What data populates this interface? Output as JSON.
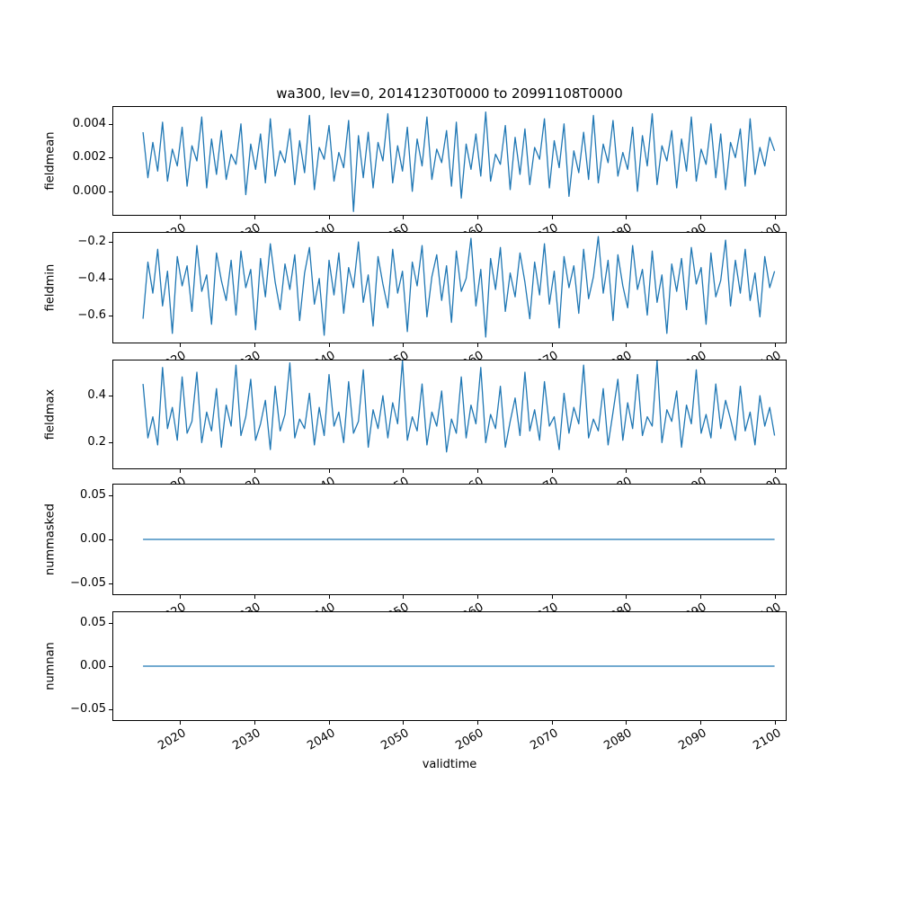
{
  "figure": {
    "title": "wa300, lev=0, 20141230T0000 to 20991108T0000",
    "xlabel": "validtime",
    "line_color": "#1f77b4",
    "background": "#ffffff",
    "xlim": [
      2011.0,
      2101.5
    ],
    "xticks": [
      2020,
      2030,
      2040,
      2050,
      2060,
      2070,
      2080,
      2090,
      2100
    ],
    "xtick_labels": [
      "2020",
      "2030",
      "2040",
      "2050",
      "2060",
      "2070",
      "2080",
      "2090",
      "2100"
    ]
  },
  "chart_data": [
    {
      "type": "line",
      "ylabel": "fieldmean",
      "ylim": [
        -0.0014,
        0.005
      ],
      "yticks": [
        {
          "v": 0.004,
          "label": "0.004"
        },
        {
          "v": 0.002,
          "label": "0.002"
        },
        {
          "v": 0.0,
          "label": "0.000"
        }
      ],
      "x_start": 2015,
      "x_end": 2100,
      "values": [
        0.0035,
        0.0008,
        0.0029,
        0.0012,
        0.0041,
        0.0006,
        0.0025,
        0.0015,
        0.0038,
        0.0003,
        0.0027,
        0.0018,
        0.0044,
        0.0002,
        0.0031,
        0.001,
        0.0036,
        0.0007,
        0.0022,
        0.0016,
        0.004,
        -0.0002,
        0.0028,
        0.0013,
        0.0034,
        0.0005,
        0.0043,
        0.0009,
        0.0024,
        0.0017,
        0.0037,
        0.0004,
        0.003,
        0.0011,
        0.0045,
        0.0001,
        0.0026,
        0.0019,
        0.0039,
        0.0006,
        0.0023,
        0.0014,
        0.0042,
        -0.0012,
        0.0033,
        0.0008,
        0.0035,
        0.0002,
        0.0029,
        0.0018,
        0.0046,
        0.0005,
        0.0027,
        0.0012,
        0.0038,
        0.0,
        0.0031,
        0.0015,
        0.0044,
        0.0007,
        0.0025,
        0.0017,
        0.0036,
        0.0003,
        0.0041,
        -0.0004,
        0.0028,
        0.0013,
        0.0034,
        0.0009,
        0.0047,
        0.0006,
        0.0022,
        0.0016,
        0.0039,
        0.0001,
        0.0032,
        0.001,
        0.0037,
        0.0004,
        0.0026,
        0.0019,
        0.0043,
        0.0002,
        0.003,
        0.0014,
        0.004,
        -0.0003,
        0.0024,
        0.0011,
        0.0035,
        0.0007,
        0.0045,
        0.0005,
        0.0028,
        0.0017,
        0.0042,
        0.0009,
        0.0023,
        0.0013,
        0.0038,
        0.0,
        0.0033,
        0.0015,
        0.0046,
        0.0004,
        0.0027,
        0.0018,
        0.0036,
        0.0002,
        0.0031,
        0.0012,
        0.0044,
        0.0006,
        0.0025,
        0.0016,
        0.004,
        0.0008,
        0.0034,
        0.0001,
        0.0029,
        0.002,
        0.0037,
        0.0003,
        0.0043,
        0.001,
        0.0026,
        0.0015,
        0.0032,
        0.0024
      ]
    },
    {
      "type": "line",
      "ylabel": "fieldmin",
      "ylim": [
        -0.75,
        -0.15
      ],
      "yticks": [
        {
          "v": -0.2,
          "label": "−0.2"
        },
        {
          "v": -0.4,
          "label": "−0.4"
        },
        {
          "v": -0.6,
          "label": "−0.6"
        }
      ],
      "x_start": 2015,
      "x_end": 2100,
      "values": [
        -0.62,
        -0.31,
        -0.48,
        -0.24,
        -0.55,
        -0.36,
        -0.7,
        -0.28,
        -0.44,
        -0.33,
        -0.58,
        -0.22,
        -0.47,
        -0.38,
        -0.65,
        -0.26,
        -0.41,
        -0.52,
        -0.3,
        -0.6,
        -0.25,
        -0.45,
        -0.35,
        -0.68,
        -0.29,
        -0.5,
        -0.21,
        -0.42,
        -0.57,
        -0.32,
        -0.46,
        -0.27,
        -0.63,
        -0.37,
        -0.23,
        -0.54,
        -0.4,
        -0.71,
        -0.3,
        -0.49,
        -0.26,
        -0.59,
        -0.34,
        -0.45,
        -0.2,
        -0.53,
        -0.38,
        -0.66,
        -0.28,
        -0.43,
        -0.56,
        -0.24,
        -0.48,
        -0.36,
        -0.69,
        -0.31,
        -0.44,
        -0.22,
        -0.61,
        -0.39,
        -0.27,
        -0.52,
        -0.33,
        -0.64,
        -0.25,
        -0.47,
        -0.4,
        -0.18,
        -0.55,
        -0.35,
        -0.72,
        -0.29,
        -0.46,
        -0.23,
        -0.58,
        -0.37,
        -0.5,
        -0.26,
        -0.42,
        -0.62,
        -0.31,
        -0.49,
        -0.21,
        -0.54,
        -0.36,
        -0.67,
        -0.28,
        -0.45,
        -0.33,
        -0.59,
        -0.24,
        -0.51,
        -0.39,
        -0.17,
        -0.48,
        -0.3,
        -0.63,
        -0.27,
        -0.44,
        -0.56,
        -0.22,
        -0.46,
        -0.35,
        -0.6,
        -0.25,
        -0.53,
        -0.38,
        -0.7,
        -0.32,
        -0.47,
        -0.29,
        -0.57,
        -0.23,
        -0.43,
        -0.34,
        -0.65,
        -0.26,
        -0.5,
        -0.41,
        -0.19,
        -0.55,
        -0.3,
        -0.48,
        -0.24,
        -0.52,
        -0.37,
        -0.61,
        -0.28,
        -0.45,
        -0.36
      ]
    },
    {
      "type": "line",
      "ylabel": "fieldmax",
      "ylim": [
        0.09,
        0.55
      ],
      "yticks": [
        {
          "v": 0.4,
          "label": "0.4"
        },
        {
          "v": 0.2,
          "label": "0.2"
        }
      ],
      "x_start": 2015,
      "x_end": 2100,
      "values": [
        0.45,
        0.22,
        0.31,
        0.19,
        0.52,
        0.26,
        0.35,
        0.21,
        0.48,
        0.24,
        0.29,
        0.5,
        0.2,
        0.33,
        0.25,
        0.43,
        0.18,
        0.36,
        0.27,
        0.53,
        0.23,
        0.31,
        0.47,
        0.21,
        0.28,
        0.38,
        0.17,
        0.44,
        0.25,
        0.32,
        0.54,
        0.22,
        0.3,
        0.26,
        0.41,
        0.19,
        0.35,
        0.23,
        0.49,
        0.27,
        0.33,
        0.2,
        0.46,
        0.24,
        0.29,
        0.51,
        0.18,
        0.34,
        0.26,
        0.4,
        0.22,
        0.37,
        0.28,
        0.55,
        0.21,
        0.31,
        0.25,
        0.45,
        0.19,
        0.33,
        0.27,
        0.42,
        0.16,
        0.3,
        0.24,
        0.48,
        0.22,
        0.36,
        0.28,
        0.52,
        0.2,
        0.32,
        0.26,
        0.44,
        0.18,
        0.29,
        0.39,
        0.23,
        0.5,
        0.25,
        0.34,
        0.21,
        0.46,
        0.27,
        0.31,
        0.17,
        0.41,
        0.24,
        0.35,
        0.28,
        0.53,
        0.22,
        0.3,
        0.25,
        0.43,
        0.19,
        0.33,
        0.47,
        0.21,
        0.37,
        0.26,
        0.49,
        0.23,
        0.31,
        0.27,
        0.55,
        0.2,
        0.34,
        0.29,
        0.42,
        0.18,
        0.36,
        0.28,
        0.51,
        0.24,
        0.32,
        0.22,
        0.45,
        0.26,
        0.38,
        0.3,
        0.21,
        0.44,
        0.25,
        0.33,
        0.19,
        0.4,
        0.27,
        0.35,
        0.23
      ]
    },
    {
      "type": "line",
      "ylabel": "nummasked",
      "ylim": [
        -0.0625,
        0.0625
      ],
      "yticks": [
        {
          "v": 0.05,
          "label": "0.05"
        },
        {
          "v": 0.0,
          "label": "0.00"
        },
        {
          "v": -0.05,
          "label": "−0.05"
        }
      ],
      "x_start": 2015,
      "x_end": 2100,
      "values": [
        0,
        0
      ]
    },
    {
      "type": "line",
      "ylabel": "numnan",
      "ylim": [
        -0.0625,
        0.0625
      ],
      "yticks": [
        {
          "v": 0.05,
          "label": "0.05"
        },
        {
          "v": 0.0,
          "label": "0.00"
        },
        {
          "v": -0.05,
          "label": "−0.05"
        }
      ],
      "x_start": 2015,
      "x_end": 2100,
      "values": [
        0,
        0
      ]
    }
  ]
}
